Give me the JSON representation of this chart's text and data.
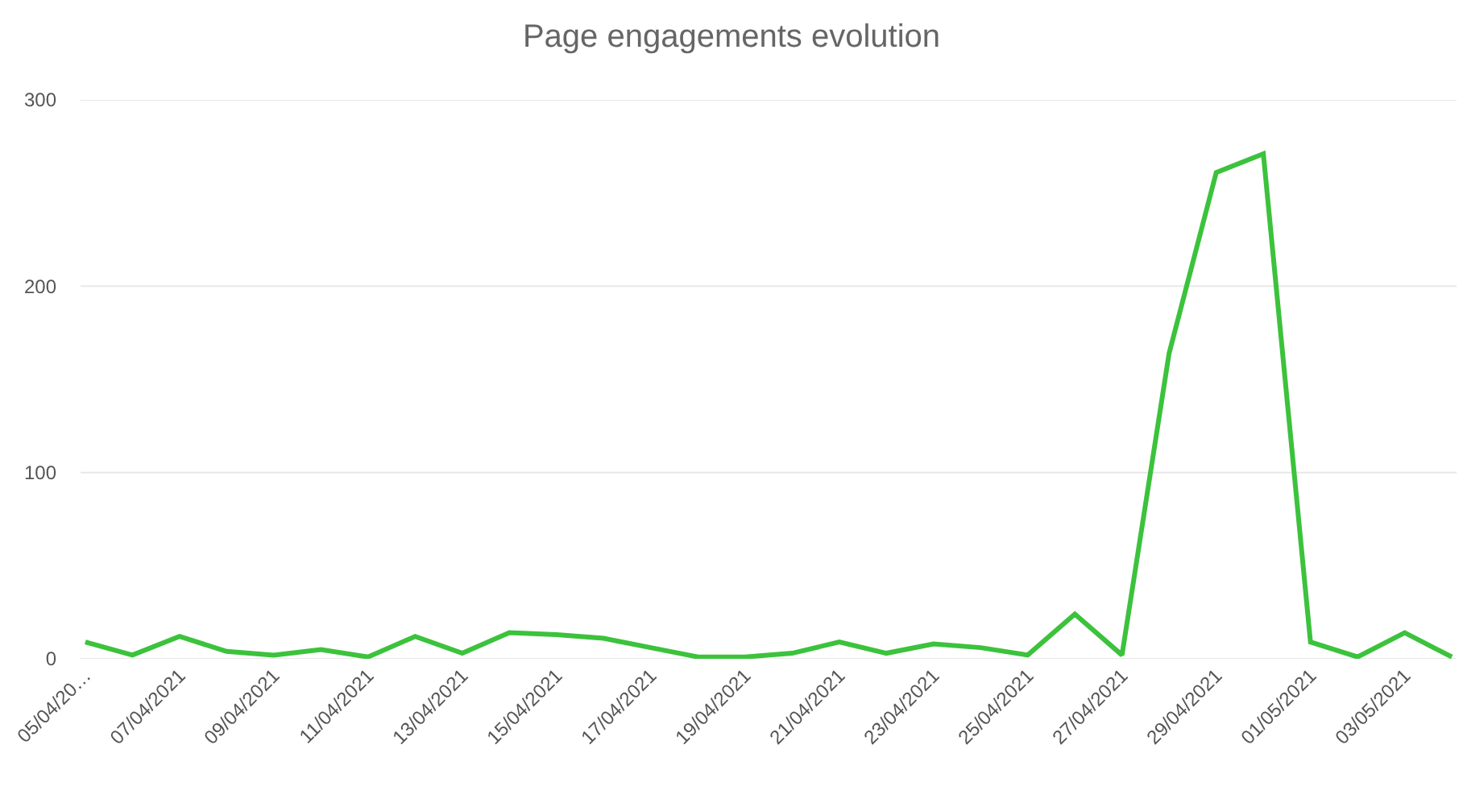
{
  "chart_data": {
    "type": "line",
    "title": "Page engagements evolution",
    "categories": [
      "05/04/20…",
      null,
      "07/04/2021",
      null,
      "09/04/2021",
      null,
      "11/04/2021",
      null,
      "13/04/2021",
      null,
      "15/04/2021",
      null,
      "17/04/2021",
      null,
      "19/04/2021",
      null,
      "21/04/2021",
      null,
      "23/04/2021",
      null,
      "25/04/2021",
      null,
      "27/04/2021",
      null,
      "29/04/2021",
      null,
      "01/05/2021",
      null,
      "03/05/2021",
      null
    ],
    "series": [
      {
        "color": "#3cc23c",
        "values": [
          9,
          2,
          12,
          4,
          2,
          5,
          1,
          12,
          3,
          14,
          13,
          11,
          6,
          1,
          1,
          3,
          9,
          3,
          8,
          6,
          2,
          24,
          2,
          164,
          261,
          271,
          9,
          1,
          14,
          1
        ]
      }
    ],
    "ylim": [
      0,
      300
    ],
    "yticks": [
      0,
      100,
      200,
      300
    ],
    "grid": "y",
    "marker": "none",
    "line_style": "solid"
  }
}
